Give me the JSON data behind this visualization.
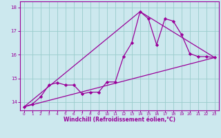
{
  "xlabel": "Windchill (Refroidissement éolien,°C)",
  "bg_color": "#cce8ee",
  "line_color": "#990099",
  "grid_color": "#99cccc",
  "tick_color": "#990099",
  "label_color": "#990099",
  "xlim": [
    -0.5,
    23.5
  ],
  "ylim": [
    13.65,
    18.25
  ],
  "yticks": [
    14,
    15,
    16,
    17,
    18
  ],
  "xticks": [
    0,
    1,
    2,
    3,
    4,
    5,
    6,
    7,
    8,
    9,
    10,
    11,
    12,
    13,
    14,
    15,
    16,
    17,
    18,
    19,
    20,
    21,
    22,
    23
  ],
  "line1_x": [
    0,
    1,
    2,
    3,
    4,
    5,
    6,
    7,
    8,
    9,
    10,
    11,
    12,
    13,
    14,
    15,
    16,
    17,
    18,
    19,
    20,
    21,
    22,
    23
  ],
  "line1_y": [
    13.8,
    13.92,
    14.22,
    14.72,
    14.82,
    14.72,
    14.72,
    14.35,
    14.42,
    14.42,
    14.85,
    14.85,
    15.92,
    16.5,
    17.82,
    17.52,
    16.42,
    17.52,
    17.42,
    16.85,
    16.05,
    15.92,
    15.92,
    15.88
  ],
  "line2_x": [
    0,
    23
  ],
  "line2_y": [
    13.8,
    15.88
  ],
  "line3_x": [
    0,
    14,
    23
  ],
  "line3_y": [
    13.8,
    17.82,
    15.88
  ]
}
